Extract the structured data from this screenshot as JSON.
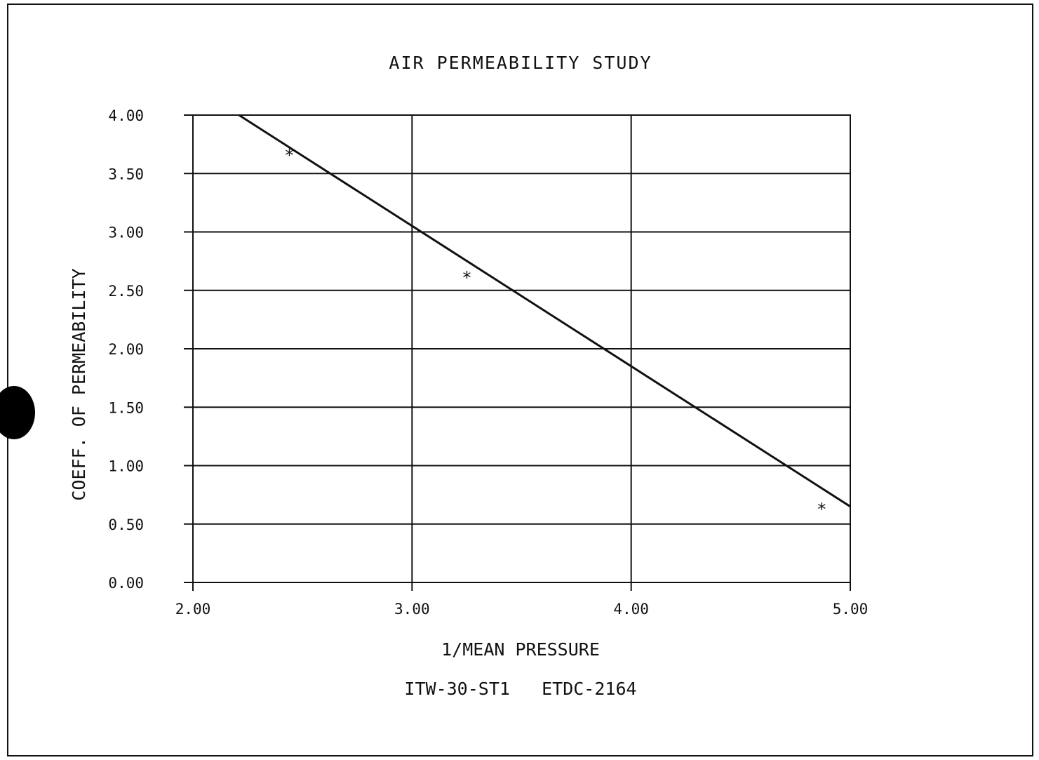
{
  "chart_data": {
    "type": "line",
    "title": "AIR PERMEABILITY STUDY",
    "xlabel": "1/MEAN PRESSURE",
    "ylabel": "COEFF. OF PERMEABILITY",
    "caption": "ITW-30-ST1   ETDC-2164",
    "xlim": [
      2.0,
      5.0
    ],
    "ylim": [
      0.0,
      4.0
    ],
    "x_ticks": [
      "2.00",
      "3.00",
      "4.00",
      "5.00"
    ],
    "y_ticks": [
      "0.00",
      "0.50",
      "1.00",
      "1.50",
      "2.00",
      "2.50",
      "3.00",
      "3.50",
      "4.00"
    ],
    "x_tick_values": [
      2.0,
      3.0,
      4.0,
      5.0
    ],
    "y_tick_values": [
      0.0,
      0.5,
      1.0,
      1.5,
      2.0,
      2.5,
      3.0,
      3.5,
      4.0
    ],
    "grid": true,
    "series": [
      {
        "type": "scatter",
        "marker": "*",
        "x": [
          2.44,
          3.25,
          4.87
        ],
        "y": [
          3.68,
          2.63,
          0.65
        ]
      },
      {
        "type": "line",
        "x": [
          2.21,
          5.0
        ],
        "y": [
          4.0,
          0.65
        ]
      }
    ]
  }
}
